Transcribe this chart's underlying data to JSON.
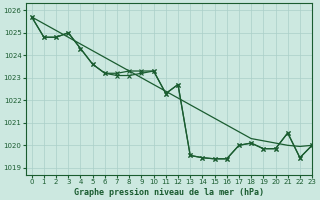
{
  "xlabel": "Graphe pression niveau de la mer (hPa)",
  "ylim": [
    1018.7,
    1026.3
  ],
  "xlim": [
    -0.5,
    23
  ],
  "yticks": [
    1019,
    1020,
    1021,
    1022,
    1023,
    1024,
    1025,
    1026
  ],
  "xticks": [
    0,
    1,
    2,
    3,
    4,
    5,
    6,
    7,
    8,
    9,
    10,
    11,
    12,
    13,
    14,
    15,
    16,
    17,
    18,
    19,
    20,
    21,
    22,
    23
  ],
  "background_color": "#cce8e0",
  "grid_color": "#aacfc8",
  "line_color": "#1a5c30",
  "line_smooth": [
    1025.7,
    1025.4,
    1025.1,
    1024.8,
    1024.5,
    1024.2,
    1023.9,
    1023.6,
    1023.3,
    1023.0,
    1022.7,
    1022.4,
    1022.1,
    1021.8,
    1021.5,
    1021.2,
    1020.9,
    1020.6,
    1020.3,
    1020.2,
    1020.1,
    1020.0,
    1019.95,
    1020.0
  ],
  "line_marked1": [
    1025.7,
    1024.8,
    1024.8,
    1025.0,
    1024.3,
    1023.6,
    1023.2,
    1023.2,
    1023.3,
    1023.3,
    1023.3,
    1022.3,
    1022.7,
    1019.55,
    1019.45,
    1019.4,
    1019.4,
    1020.0,
    1020.1,
    1019.85,
    1019.85,
    1020.55,
    1019.45,
    1020.0
  ],
  "line_marked2": [
    1025.7,
    1024.8,
    1024.8,
    1025.0,
    1024.3,
    1023.6,
    1023.2,
    1023.1,
    1023.1,
    1023.2,
    1023.3,
    1022.3,
    1022.7,
    1019.55,
    1019.45,
    1019.4,
    1019.4,
    1020.0,
    1020.1,
    1019.85,
    1019.85,
    1020.55,
    1019.45,
    1020.0
  ]
}
